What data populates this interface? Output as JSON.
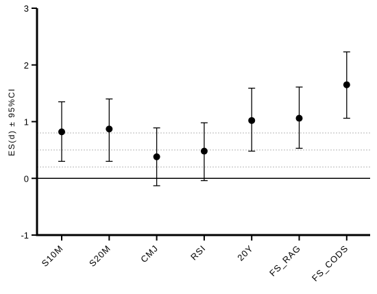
{
  "chart_data": {
    "type": "scatter",
    "subtype": "point-estimate-with-error-bars",
    "ylabel": "ES(d) ± 95%CI",
    "ylim": [
      -1,
      3
    ],
    "yticks": [
      -1,
      0,
      1,
      2,
      3
    ],
    "reference_lines": [
      {
        "y": 0,
        "style": "solid"
      },
      {
        "y": 0.2,
        "style": "dotted"
      },
      {
        "y": 0.5,
        "style": "dotted"
      },
      {
        "y": 0.8,
        "style": "dotted"
      }
    ],
    "categories": [
      "S10M",
      "S20M",
      "CMJ",
      "RSI",
      "20Y",
      "FS_RAG",
      "FS_CODS"
    ],
    "values": [
      0.82,
      0.87,
      0.38,
      0.48,
      1.02,
      1.06,
      1.65
    ],
    "ci_lower": [
      0.3,
      0.3,
      -0.13,
      -0.04,
      0.48,
      0.53,
      1.06
    ],
    "ci_upper": [
      1.35,
      1.4,
      0.89,
      0.98,
      1.59,
      1.61,
      2.23
    ],
    "grid": false,
    "legend": "none"
  }
}
